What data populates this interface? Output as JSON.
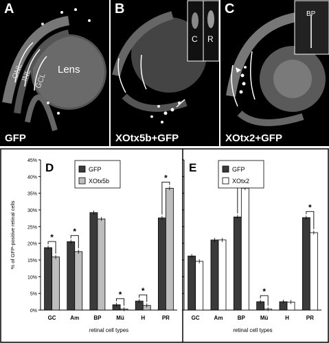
{
  "panels": [
    {
      "letter": "A",
      "caption": "GFP",
      "layers": [
        "ONL",
        "INL",
        "GCL"
      ],
      "center_label": "Lens"
    },
    {
      "letter": "B",
      "caption": "XOtx5b+GFP",
      "inset_labels": [
        "C",
        "R"
      ]
    },
    {
      "letter": "C",
      "caption": "XOtx2+GFP",
      "inset_labels": [
        "BP"
      ]
    }
  ],
  "chart_data": [
    {
      "type": "bar",
      "panel_letter": "D",
      "categories": [
        "GC",
        "Am",
        "BP",
        "Mü",
        "H",
        "PR"
      ],
      "series": [
        {
          "name": "GFP",
          "values": [
            18.7,
            20.5,
            29.2,
            1.6,
            2.7,
            27.6
          ],
          "color": "#3a3a3a"
        },
        {
          "name": "XOtx5b",
          "values": [
            15.9,
            17.5,
            27.3,
            0.3,
            1.4,
            36.5
          ],
          "color": "#bdbdbd"
        }
      ],
      "significant": [
        0,
        1,
        3,
        4,
        5
      ],
      "ylabel": "% of GFP-positive retinal cells",
      "xlabel": "retinal cell types",
      "yticks": [
        "0%",
        "5%",
        "10%",
        "15%",
        "20%",
        "25%",
        "30%",
        "35%",
        "40%",
        "45%"
      ],
      "ylim": [
        0,
        45
      ],
      "legend_position": "top-left"
    },
    {
      "type": "bar",
      "panel_letter": "E",
      "categories": [
        "GC",
        "Am",
        "BP",
        "Mü",
        "H",
        "PR"
      ],
      "series": [
        {
          "name": "GFP",
          "values": [
            16.2,
            21.0,
            27.9,
            2.5,
            2.5,
            27.7
          ],
          "color": "#3a3a3a"
        },
        {
          "name": "XOtx2",
          "values": [
            14.6,
            21.0,
            36.5,
            0.3,
            2.4,
            23.2
          ],
          "color": "#ffffff"
        }
      ],
      "significant": [
        2,
        3,
        5
      ],
      "ylabel": "",
      "xlabel": "retinal cell types",
      "yticks": [],
      "ylim": [
        0,
        45
      ],
      "legend_position": "top-left"
    }
  ]
}
